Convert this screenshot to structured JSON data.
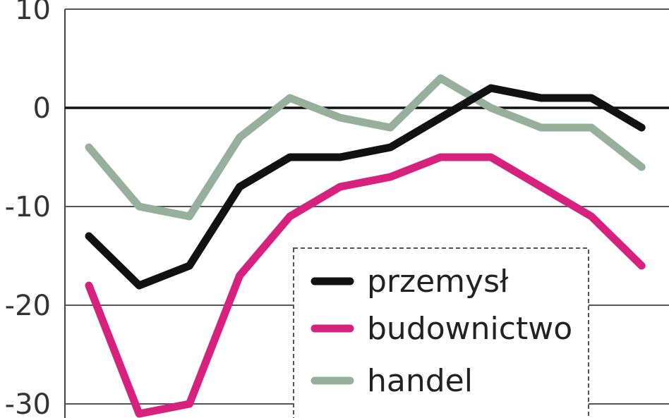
{
  "chart_data": {
    "type": "line",
    "title": "",
    "xlabel": "",
    "ylabel": "",
    "ylim": [
      -30,
      10
    ],
    "yticks": [
      10,
      0,
      -10,
      -20,
      -30
    ],
    "ytick_labels": [
      "10",
      "0",
      "-10",
      "-20",
      "-30"
    ],
    "grid": "horizontal",
    "legend_position": "bottom-center",
    "x": [
      1,
      2,
      3,
      4,
      5,
      6,
      7,
      8,
      9,
      10,
      11,
      12,
      13,
      14,
      15
    ],
    "series": [
      {
        "name": "przemysł",
        "color": "#111111",
        "values": [
          -13,
          -18,
          -16,
          -8,
          -5,
          -5,
          -4,
          -1,
          2,
          1,
          1,
          -2,
          null,
          null,
          null
        ]
      },
      {
        "name": "budownictwo",
        "color": "#d6217e",
        "values": [
          -18,
          -31,
          -30,
          -17,
          -11,
          -8,
          -7,
          -5,
          -5,
          -8,
          -11,
          -16,
          null,
          null,
          null
        ]
      },
      {
        "name": "handel",
        "color": "#97b09b",
        "values": [
          -4,
          -10,
          -11,
          -3,
          1,
          -1,
          -2,
          3,
          0,
          -2,
          -2,
          -6,
          null,
          null,
          null
        ]
      }
    ]
  }
}
